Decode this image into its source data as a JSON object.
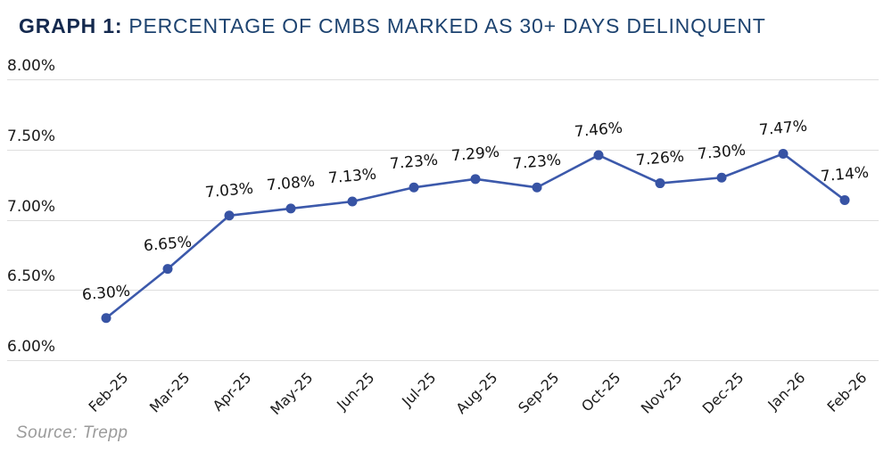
{
  "title": {
    "prefix": "GRAPH 1:",
    "rest": "PERCENTAGE OF CMBS MARKED AS 30+ DAYS DELINQUENT"
  },
  "source": "Source: Trepp",
  "colors": {
    "title_prefix": "#14294e",
    "title_rest": "#1d4370",
    "line": "#3c59ab",
    "marker": "#3753a4",
    "grid": "#dedede",
    "tick_label": "#1a1a1a",
    "data_label": "#111111",
    "source": "#9b9b9b"
  },
  "chart_data": {
    "type": "line",
    "title": "GRAPH 1: PERCENTAGE OF CMBS MARKED AS 30+ DAYS DELINQUENT",
    "categories": [
      "Feb-25",
      "Mar-25",
      "Apr-25",
      "May-25",
      "Jun-25",
      "Jul-25",
      "Aug-25",
      "Sep-25",
      "Oct-25",
      "Nov-25",
      "Dec-25",
      "Jan-26",
      "Feb-26"
    ],
    "values": [
      6.3,
      6.65,
      7.03,
      7.08,
      7.13,
      7.23,
      7.29,
      7.23,
      7.46,
      7.26,
      7.3,
      7.47,
      7.14
    ],
    "data_labels": [
      "6.30%",
      "6.65%",
      "7.03%",
      "7.08%",
      "7.13%",
      "7.23%",
      "7.29%",
      "7.23%",
      "7.46%",
      "7.26%",
      "7.30%",
      "7.47%",
      "7.14%"
    ],
    "xlabel": "",
    "ylabel": "",
    "y_ticks": [
      {
        "label": "8.00%",
        "value": 8.0
      },
      {
        "label": "7.50%",
        "value": 7.5
      },
      {
        "label": "7.00%",
        "value": 7.0
      },
      {
        "label": "6.50%",
        "value": 6.5
      },
      {
        "label": "6.00%",
        "value": 6.0
      }
    ],
    "ylim": [
      6.0,
      8.0
    ],
    "grid": true,
    "legend": false,
    "marker": "circle",
    "source": "Source: Trepp"
  }
}
